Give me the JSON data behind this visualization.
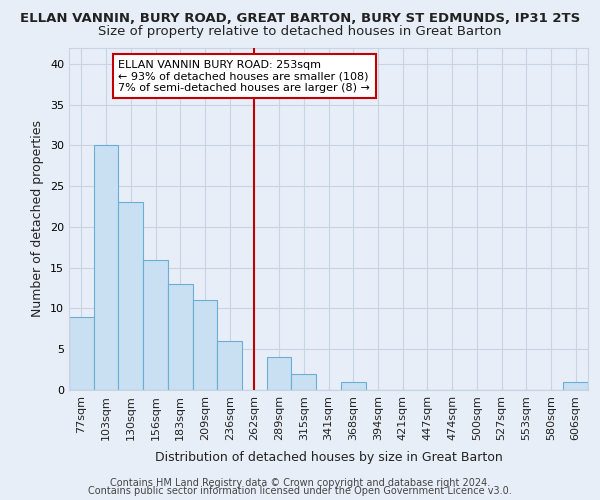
{
  "title_line1": "ELLAN VANNIN, BURY ROAD, GREAT BARTON, BURY ST EDMUNDS, IP31 2TS",
  "title_line2": "Size of property relative to detached houses in Great Barton",
  "xlabel": "Distribution of detached houses by size in Great Barton",
  "ylabel": "Number of detached properties",
  "footer_line1": "Contains HM Land Registry data © Crown copyright and database right 2024.",
  "footer_line2": "Contains public sector information licensed under the Open Government Licence v3.0.",
  "categories": [
    "77sqm",
    "103sqm",
    "130sqm",
    "156sqm",
    "183sqm",
    "209sqm",
    "236sqm",
    "262sqm",
    "289sqm",
    "315sqm",
    "341sqm",
    "368sqm",
    "394sqm",
    "421sqm",
    "447sqm",
    "474sqm",
    "500sqm",
    "527sqm",
    "553sqm",
    "580sqm",
    "606sqm"
  ],
  "values": [
    9,
    30,
    23,
    16,
    13,
    11,
    6,
    0,
    4,
    2,
    0,
    1,
    0,
    0,
    0,
    0,
    0,
    0,
    0,
    0,
    1
  ],
  "bar_color": "#c9dff2",
  "bar_edge_color": "#6aaed6",
  "vline_color": "#c00000",
  "annotation_text": "ELLAN VANNIN BURY ROAD: 253sqm\n← 93% of detached houses are smaller (108)\n7% of semi-detached houses are larger (8) →",
  "annotation_box_edge_color": "#c00000",
  "ylim": [
    0,
    42
  ],
  "yticks": [
    0,
    5,
    10,
    15,
    20,
    25,
    30,
    35,
    40
  ],
  "grid_color": "#c8d4e3",
  "bg_color": "#e8eef7",
  "plot_bg_color": "#e8eef7",
  "title_fontsize": 9.5,
  "subtitle_fontsize": 9.5,
  "tick_fontsize": 8,
  "label_fontsize": 9
}
